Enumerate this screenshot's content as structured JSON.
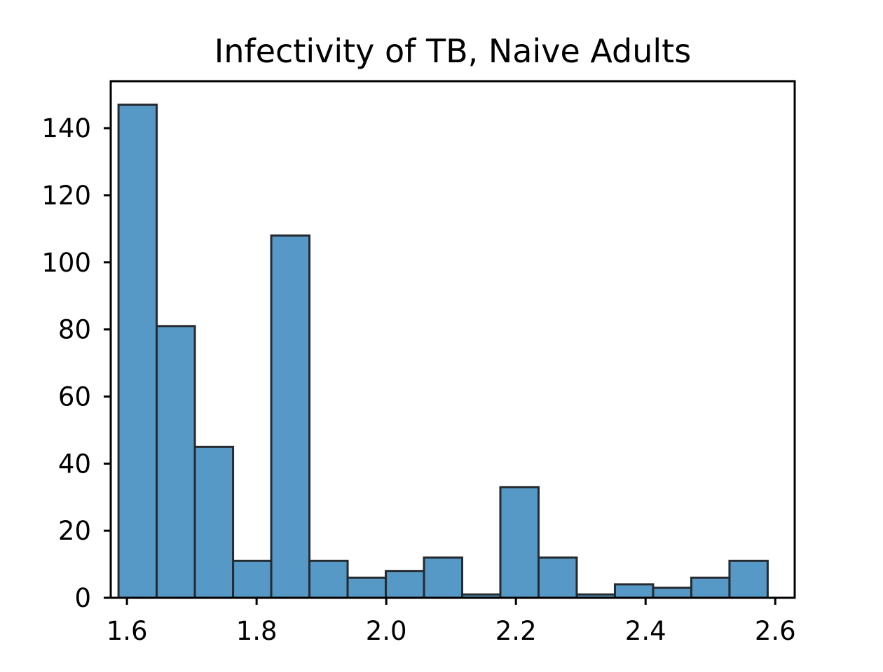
{
  "chart_data": {
    "type": "bar",
    "title": "Infectivity of TB, Naive Adults",
    "xlabel": "",
    "ylabel": "",
    "bin_edges": [
      1.587,
      1.6459,
      1.7048,
      1.7637,
      1.8226,
      1.8815,
      1.9404,
      1.9993,
      2.0582,
      2.1171,
      2.176,
      2.2349,
      2.2938,
      2.3527,
      2.4116,
      2.4705,
      2.5294,
      2.5883
    ],
    "values": [
      147,
      81,
      45,
      11,
      108,
      11,
      6,
      8,
      12,
      1,
      33,
      12,
      1,
      4,
      3,
      6,
      11
    ],
    "xlim": [
      1.575,
      2.63
    ],
    "ylim": [
      0,
      154
    ],
    "xticks": [
      1.6,
      1.8,
      2.0,
      2.2,
      2.4,
      2.6
    ],
    "xtick_labels": [
      "1.6",
      "1.8",
      "2.0",
      "2.2",
      "2.4",
      "2.6"
    ],
    "yticks": [
      0,
      20,
      40,
      60,
      80,
      100,
      120,
      140
    ],
    "ytick_labels": [
      "0",
      "20",
      "40",
      "60",
      "80",
      "100",
      "120",
      "140"
    ],
    "grid": false,
    "legend": "none",
    "colors": {
      "bar_fill": "#5698c6",
      "bar_edge": "#262b30"
    }
  }
}
